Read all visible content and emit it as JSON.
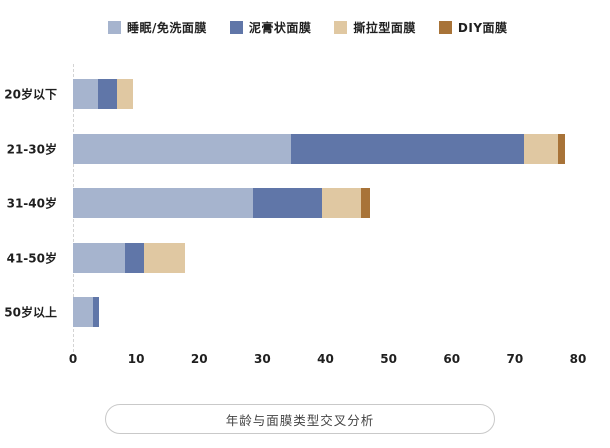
{
  "chart_data": {
    "type": "bar",
    "orientation": "horizontal",
    "stacked": true,
    "title": "年龄与面膜类型交叉分析",
    "categories": [
      "20岁以下",
      "21-30岁",
      "31-40岁",
      "41-50岁",
      "50岁以上"
    ],
    "series": [
      {
        "name": "睡眠/免洗面膜",
        "color": "#a6b4ce",
        "values": [
          4,
          34.5,
          28.5,
          8.2,
          3.2
        ]
      },
      {
        "name": "泥膏状面膜",
        "color": "#6076a8",
        "values": [
          3,
          37,
          11,
          3,
          0.9
        ]
      },
      {
        "name": "撕拉型面膜",
        "color": "#e0c8a2",
        "values": [
          2.5,
          5.3,
          6.2,
          6.5,
          0
        ]
      },
      {
        "name": "DIY面膜",
        "color": "#a87338",
        "values": [
          0,
          1.2,
          1.3,
          0,
          0
        ]
      }
    ],
    "x_ticks": [
      0,
      10,
      20,
      30,
      40,
      50,
      60,
      70,
      80
    ],
    "xlim": [
      0,
      80
    ],
    "xlabel": "",
    "ylabel": "",
    "legend_position": "top",
    "grid": false,
    "background_color": "#ffffff",
    "axis_line_color": "#d4d4d4"
  }
}
